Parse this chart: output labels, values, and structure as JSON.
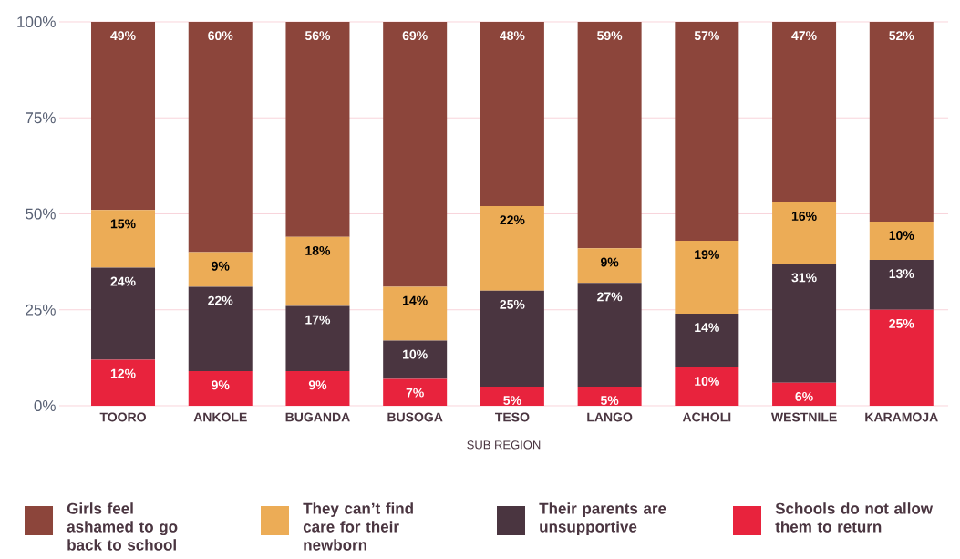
{
  "chart_data": {
    "type": "bar",
    "stacked": true,
    "xlabel": "SUB REGION",
    "categories": [
      "TOORO",
      "ANKOLE",
      "BUGANDA",
      "BUSOGA",
      "TESO",
      "LANGO",
      "ACHOLI",
      "WESTNILE",
      "KARAMOJA"
    ],
    "series": [
      {
        "name": "Schools do not allow them to return",
        "color": "#e8233d",
        "values": [
          12,
          9,
          9,
          7,
          5,
          5,
          10,
          6,
          25
        ],
        "value_labels": [
          "12%",
          "9%",
          "9%",
          "7%",
          "5%",
          "5%",
          "10%",
          "6%",
          "25%"
        ]
      },
      {
        "name": "Their parents are unsupportive",
        "color": "#4a3540",
        "values": [
          24,
          22,
          17,
          10,
          25,
          27,
          14,
          31,
          13
        ],
        "value_labels": [
          "24%",
          "22%",
          "17%",
          "10%",
          "25%",
          "27%",
          "14%",
          "31%",
          "13%"
        ]
      },
      {
        "name": "They can’t find care for their newborn",
        "color": "#ecac56",
        "values": [
          15,
          9,
          18,
          14,
          22,
          9,
          19,
          16,
          10
        ],
        "value_labels": [
          "15%",
          "9%",
          "18%",
          "14%",
          "22%",
          "9%",
          "19%",
          "16%",
          "10%"
        ]
      },
      {
        "name": "Girls feel ashamed to go back to school",
        "color": "#8c453b",
        "values": [
          49,
          60,
          56,
          69,
          48,
          59,
          57,
          47,
          52
        ],
        "value_labels": [
          "49%",
          "60%",
          "56%",
          "69%",
          "48%",
          "59%",
          "57%",
          "47%",
          "52%"
        ]
      }
    ],
    "ylim": [
      0,
      100
    ],
    "yticks": [
      {
        "value": 0,
        "label": "0%"
      },
      {
        "value": 25,
        "label": "25%"
      },
      {
        "value": 50,
        "label": "50%"
      },
      {
        "value": 75,
        "label": "75%"
      },
      {
        "value": 100,
        "label": "100%"
      }
    ],
    "grid": "y",
    "legend": "bottom"
  }
}
